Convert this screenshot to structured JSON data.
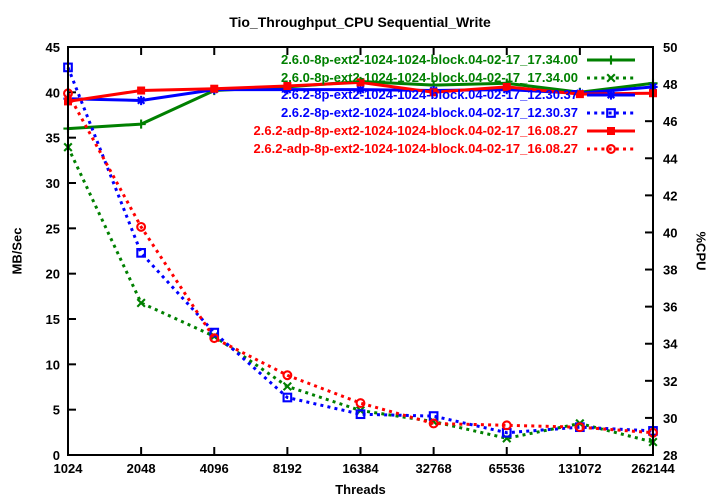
{
  "title": "Tio_Throughput_CPU Sequential_Write",
  "chart_data": {
    "type": "line",
    "title": "Tio_Throughput_CPU Sequential_Write",
    "xlabel": "Threads",
    "ylabel_left": "MB/Sec",
    "ylabel_right": "%CPU",
    "grid": false,
    "legend_position": "top-right-inside",
    "x_categories": [
      "1024",
      "2048",
      "4096",
      "8192",
      "16384",
      "32768",
      "65536",
      "131072",
      "262144"
    ],
    "x_scale": "log2-categorical",
    "y_left_range": [
      0,
      45
    ],
    "y_right_range": [
      28,
      50
    ],
    "y_left_ticks": [
      0,
      5,
      10,
      15,
      20,
      25,
      30,
      35,
      40,
      45
    ],
    "y_right_ticks": [
      28,
      30,
      32,
      34,
      36,
      38,
      40,
      42,
      44,
      46,
      48,
      50
    ],
    "series": [
      {
        "name": "2.6.0-8p-ext2-1024-1024-block.04-02-17_17.34.00",
        "color": "#008000",
        "line_style": "solid",
        "marker": "plus",
        "axis": "left",
        "unit": "MB/Sec",
        "values": [
          36.0,
          36.5,
          40.2,
          40.6,
          41.2,
          40.8,
          41.0,
          40.0,
          41.0
        ]
      },
      {
        "name": "2.6.0-8p-ext2-1024-1024-block.04-02-17_17.34.00",
        "color": "#008000",
        "line_style": "dashed",
        "marker": "cross",
        "axis": "right",
        "unit": "%CPU",
        "values": [
          44.6,
          36.2,
          34.4,
          31.7,
          30.4,
          29.8,
          28.9,
          29.7,
          28.7
        ]
      },
      {
        "name": "2.6.2-8p-ext2-1024-1024-block.04-02-17_12.30.37",
        "color": "#0000ff",
        "line_style": "solid",
        "marker": "asterisk",
        "axis": "left",
        "unit": "MB/Sec",
        "values": [
          39.3,
          39.1,
          40.3,
          40.3,
          40.3,
          40.2,
          40.3,
          39.9,
          40.6
        ]
      },
      {
        "name": "2.6.2-8p-ext2-1024-1024-block.04-02-17_12.30.37",
        "color": "#0000ff",
        "line_style": "dashed",
        "marker": "square-open",
        "axis": "right",
        "unit": "%CPU",
        "values": [
          48.9,
          38.9,
          34.6,
          31.1,
          30.2,
          30.1,
          29.2,
          29.5,
          29.3
        ]
      },
      {
        "name": "2.6.2-adp-8p-ext2-1024-1024-block.04-02-17_16.08.27",
        "color": "#ff0000",
        "line_style": "solid",
        "marker": "square-filled",
        "axis": "left",
        "unit": "MB/Sec",
        "values": [
          39.0,
          40.2,
          40.4,
          40.7,
          41.1,
          40.0,
          40.6,
          39.8,
          39.9
        ]
      },
      {
        "name": "2.6.2-adp-8p-ext2-1024-1024-block.04-02-17_16.08.27",
        "color": "#ff0000",
        "line_style": "dashed",
        "marker": "circle-open",
        "axis": "right",
        "unit": "%CPU",
        "values": [
          47.5,
          40.3,
          34.3,
          32.3,
          30.8,
          29.7,
          29.6,
          29.5,
          29.2
        ]
      }
    ]
  }
}
